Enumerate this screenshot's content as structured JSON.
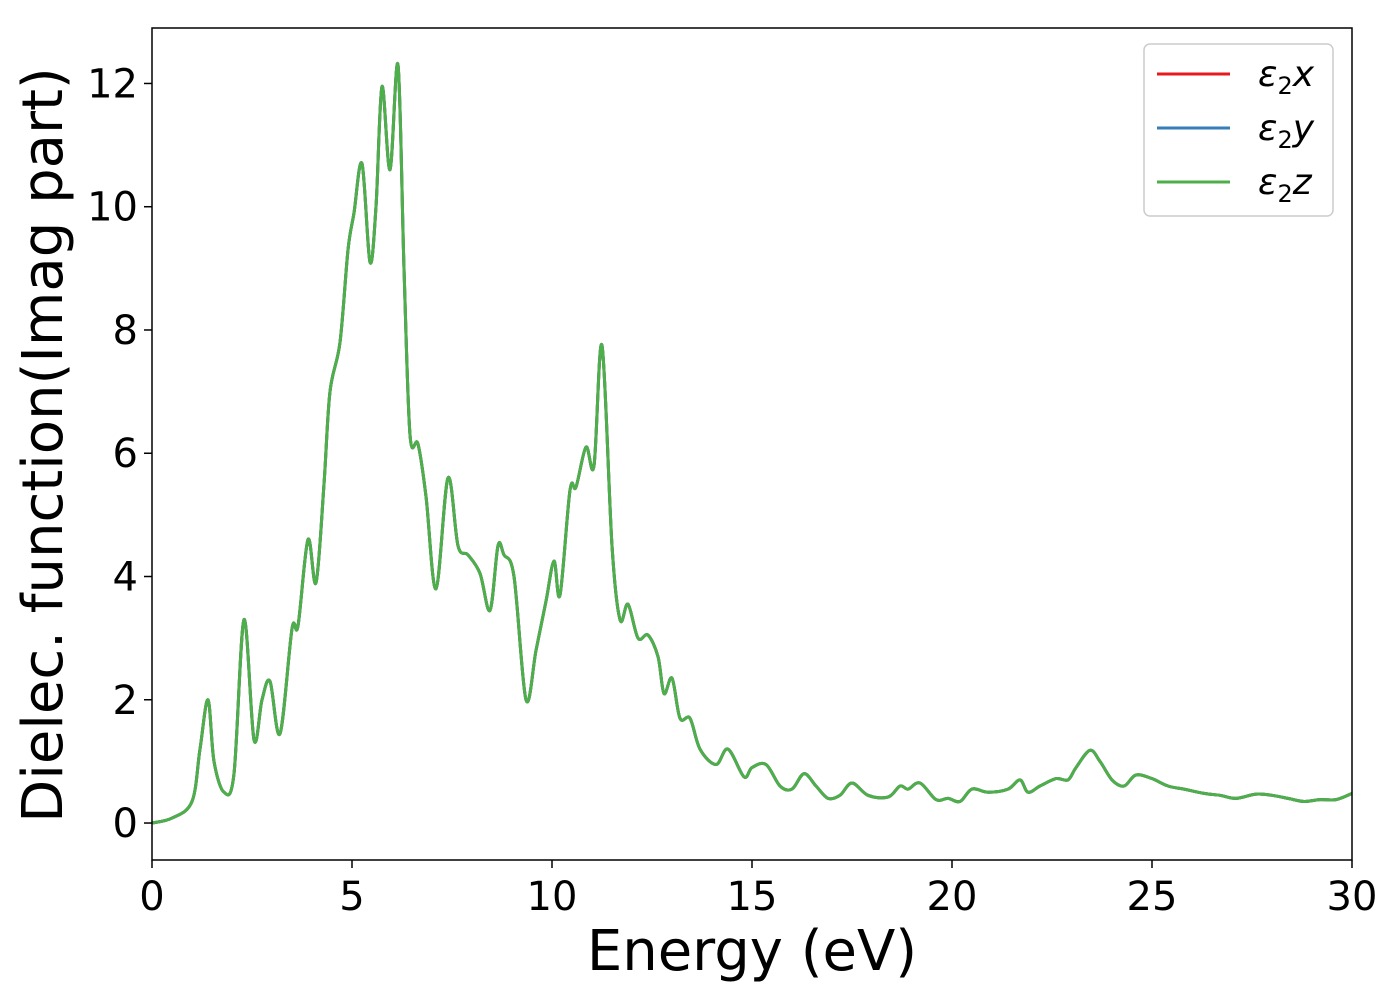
{
  "chart_data": {
    "type": "line",
    "xlabel": "Energy (eV)",
    "ylabel": "Dielec. function(Imag part)",
    "xlim": [
      0,
      30
    ],
    "ylim": [
      -0.6,
      12.9
    ],
    "xticks": [
      0,
      5,
      10,
      15,
      20,
      25,
      30
    ],
    "yticks": [
      0,
      2,
      4,
      6,
      8,
      10,
      12
    ],
    "grid": false,
    "legend_position": "top-right",
    "x": [
      0,
      0.5,
      1.0,
      1.2,
      1.4,
      1.55,
      1.8,
      2.05,
      2.3,
      2.55,
      2.75,
      2.95,
      3.2,
      3.5,
      3.65,
      3.9,
      4.1,
      4.3,
      4.45,
      4.7,
      4.9,
      5.05,
      5.25,
      5.45,
      5.6,
      5.75,
      5.95,
      6.15,
      6.3,
      6.45,
      6.65,
      6.85,
      7.1,
      7.4,
      7.65,
      7.9,
      8.2,
      8.45,
      8.65,
      8.8,
      9.05,
      9.35,
      9.6,
      9.85,
      10.05,
      10.2,
      10.45,
      10.6,
      10.85,
      11.05,
      11.25,
      11.5,
      11.7,
      11.9,
      12.15,
      12.4,
      12.65,
      12.8,
      13.0,
      13.2,
      13.45,
      13.7,
      14.1,
      14.4,
      14.8,
      15.0,
      15.35,
      15.7,
      16.0,
      16.3,
      16.6,
      16.9,
      17.2,
      17.5,
      17.9,
      18.4,
      18.7,
      18.9,
      19.2,
      19.6,
      19.9,
      20.2,
      20.5,
      20.9,
      21.4,
      21.7,
      21.9,
      22.2,
      22.6,
      22.9,
      23.1,
      23.45,
      23.7,
      24.0,
      24.3,
      24.6,
      25.0,
      25.4,
      25.8,
      26.3,
      26.7,
      27.1,
      27.6,
      28.0,
      28.4,
      28.8,
      29.2,
      29.6,
      30.0
    ],
    "series": [
      {
        "name": "ε2x",
        "name_main": "ε",
        "name_sub": "2",
        "name_var": "x",
        "color": "#e41a1c",
        "values": [
          0.0,
          0.08,
          0.35,
          1.2,
          2.0,
          1.0,
          0.5,
          0.8,
          3.3,
          1.35,
          2.0,
          2.3,
          1.45,
          3.15,
          3.2,
          4.6,
          3.9,
          5.5,
          7.0,
          7.8,
          9.3,
          9.9,
          10.7,
          9.1,
          10.0,
          11.95,
          10.6,
          12.3,
          9.0,
          6.3,
          6.15,
          5.3,
          3.8,
          5.6,
          4.5,
          4.35,
          4.05,
          3.45,
          4.5,
          4.35,
          4.0,
          2.0,
          2.8,
          3.6,
          4.25,
          3.7,
          5.4,
          5.45,
          6.1,
          5.8,
          7.75,
          4.5,
          3.3,
          3.55,
          3.0,
          3.05,
          2.7,
          2.1,
          2.35,
          1.7,
          1.7,
          1.2,
          0.95,
          1.2,
          0.75,
          0.9,
          0.95,
          0.6,
          0.55,
          0.8,
          0.6,
          0.4,
          0.45,
          0.65,
          0.45,
          0.42,
          0.6,
          0.55,
          0.65,
          0.38,
          0.4,
          0.35,
          0.55,
          0.5,
          0.55,
          0.7,
          0.5,
          0.6,
          0.72,
          0.7,
          0.9,
          1.18,
          1.0,
          0.7,
          0.6,
          0.78,
          0.72,
          0.6,
          0.55,
          0.48,
          0.45,
          0.4,
          0.47,
          0.45,
          0.4,
          0.35,
          0.38,
          0.38,
          0.48
        ]
      },
      {
        "name": "ε2y",
        "name_main": "ε",
        "name_sub": "2",
        "name_var": "y",
        "color": "#377eb8",
        "values": [
          0.0,
          0.08,
          0.35,
          1.2,
          2.0,
          1.0,
          0.5,
          0.8,
          3.3,
          1.35,
          2.0,
          2.3,
          1.45,
          3.15,
          3.2,
          4.6,
          3.9,
          5.5,
          7.0,
          7.8,
          9.3,
          9.9,
          10.7,
          9.1,
          10.0,
          11.95,
          10.6,
          12.3,
          9.0,
          6.3,
          6.15,
          5.3,
          3.8,
          5.6,
          4.5,
          4.35,
          4.05,
          3.45,
          4.5,
          4.35,
          4.0,
          2.0,
          2.8,
          3.6,
          4.25,
          3.7,
          5.4,
          5.45,
          6.1,
          5.8,
          7.75,
          4.5,
          3.3,
          3.55,
          3.0,
          3.05,
          2.7,
          2.1,
          2.35,
          1.7,
          1.7,
          1.2,
          0.95,
          1.2,
          0.75,
          0.9,
          0.95,
          0.6,
          0.55,
          0.8,
          0.6,
          0.4,
          0.45,
          0.65,
          0.45,
          0.42,
          0.6,
          0.55,
          0.65,
          0.38,
          0.4,
          0.35,
          0.55,
          0.5,
          0.55,
          0.7,
          0.5,
          0.6,
          0.72,
          0.7,
          0.9,
          1.18,
          1.0,
          0.7,
          0.6,
          0.78,
          0.72,
          0.6,
          0.55,
          0.48,
          0.45,
          0.4,
          0.47,
          0.45,
          0.4,
          0.35,
          0.38,
          0.38,
          0.48
        ]
      },
      {
        "name": "ε2z",
        "name_main": "ε",
        "name_sub": "2",
        "name_var": "z",
        "color": "#4daf4a",
        "values": [
          0.0,
          0.08,
          0.35,
          1.2,
          2.0,
          1.0,
          0.5,
          0.8,
          3.3,
          1.35,
          2.0,
          2.3,
          1.45,
          3.15,
          3.2,
          4.6,
          3.9,
          5.5,
          7.0,
          7.8,
          9.3,
          9.9,
          10.7,
          9.1,
          10.0,
          11.95,
          10.6,
          12.3,
          9.0,
          6.3,
          6.15,
          5.3,
          3.8,
          5.6,
          4.5,
          4.35,
          4.05,
          3.45,
          4.5,
          4.35,
          4.0,
          2.0,
          2.8,
          3.6,
          4.25,
          3.7,
          5.4,
          5.45,
          6.1,
          5.8,
          7.75,
          4.5,
          3.3,
          3.55,
          3.0,
          3.05,
          2.7,
          2.1,
          2.35,
          1.7,
          1.7,
          1.2,
          0.95,
          1.2,
          0.75,
          0.9,
          0.95,
          0.6,
          0.55,
          0.8,
          0.6,
          0.4,
          0.45,
          0.65,
          0.45,
          0.42,
          0.6,
          0.55,
          0.65,
          0.38,
          0.4,
          0.35,
          0.55,
          0.5,
          0.55,
          0.7,
          0.5,
          0.6,
          0.72,
          0.7,
          0.9,
          1.18,
          1.0,
          0.7,
          0.6,
          0.78,
          0.72,
          0.6,
          0.55,
          0.48,
          0.45,
          0.4,
          0.47,
          0.45,
          0.4,
          0.35,
          0.38,
          0.38,
          0.48
        ]
      }
    ]
  }
}
